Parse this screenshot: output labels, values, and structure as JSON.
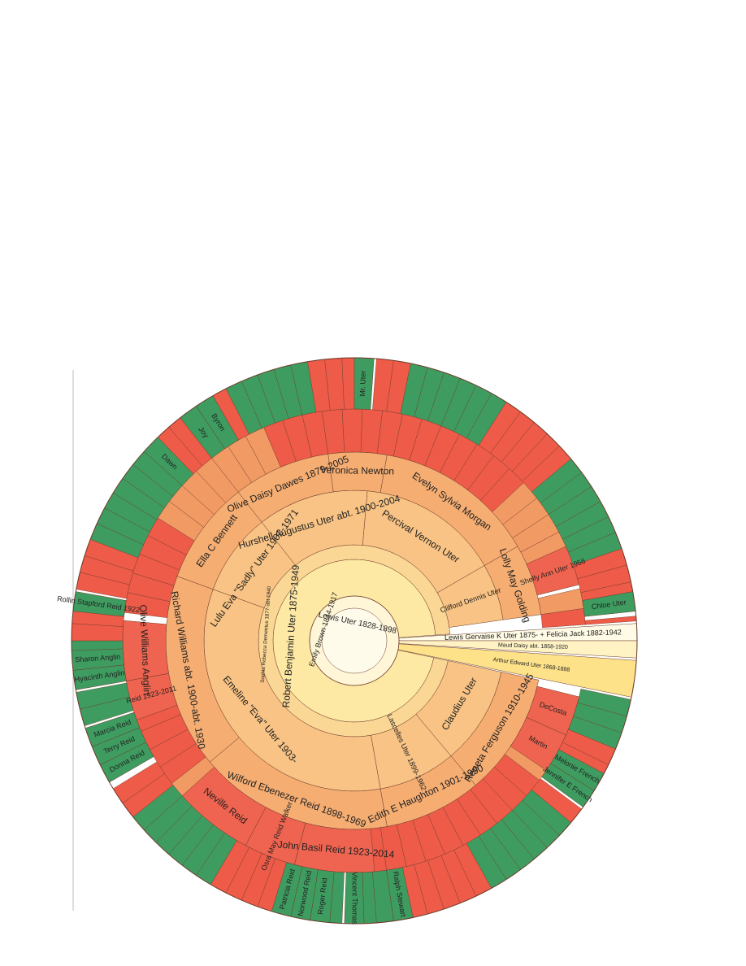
{
  "center": [
    "Lewis Uter 1828-1898",
    "Emily Brown 1844-1917"
  ],
  "branches": [
    "Lewis Gervaise K Uter 1875- + Felicia Jack 1882-1942",
    "Maud Daisy abt. 1858-1920",
    "Arthur Edward Uter 1868-1888"
  ],
  "rings": [
    {
      "color": "#fde9a3",
      "people": [
        "Robert Benjamin Uter 1875-1949"
      ]
    },
    {
      "color": "#fbd795",
      "people": [
        "Sophia Rebecca Demetrius 1877-abt.1940"
      ]
    },
    {
      "color": "#f8c384",
      "people": [
        "Claudius Uter",
        "Lascelles Uter 1899-1962",
        "Emeline \"Eva\" Uter 1903-",
        "Lulu Eva \"Sadly\" Uter 1902-1971",
        "Hurshell Augustus Uter abt. 1900-2004",
        "Percival Vernon Uter",
        "Clifford Dennis Uter"
      ]
    },
    {
      "color": "#f5ad72",
      "people": [
        "Reneta Ferguson 1910-1945",
        "Edith E Haughton 1901-1990",
        "Wilford Ebenezer Reid 1898-1969",
        "Richard Williams abt. 1900-abt. 1930",
        "Ella C Bennett",
        "Olive Daisy Dawes 1879-2005",
        "Veronica Newton",
        "Evelyn Sylvia Morgan",
        "Lolly May Golding"
      ]
    },
    {
      "color": "#ef6450",
      "people": [
        "DeCosta",
        "Martin",
        "John Basil Reid 1923-2014",
        "Osra May Reid Walker",
        "Neville Reid",
        "Reid 1923-2011",
        "Olive Williams Anglin",
        "Shelly Ann Uter 1956"
      ]
    },
    {
      "color": "#3f9c60",
      "people": [
        "Melonie French",
        "Jennifer E French",
        "Ralph Stewart",
        "Vincent Thomas",
        "Roger Reid",
        "Norwood Reid",
        "Patricia Reid",
        "Donna Reid",
        "Terry Reid",
        "Marcia Reid",
        "Hyacinth Anglin",
        "Sharon Anglin",
        "Rollin Stapford Reid 1922-",
        "Dawn",
        "Joy",
        "Byron",
        "Mr. Uter",
        "Chloe Uter"
      ]
    }
  ]
}
